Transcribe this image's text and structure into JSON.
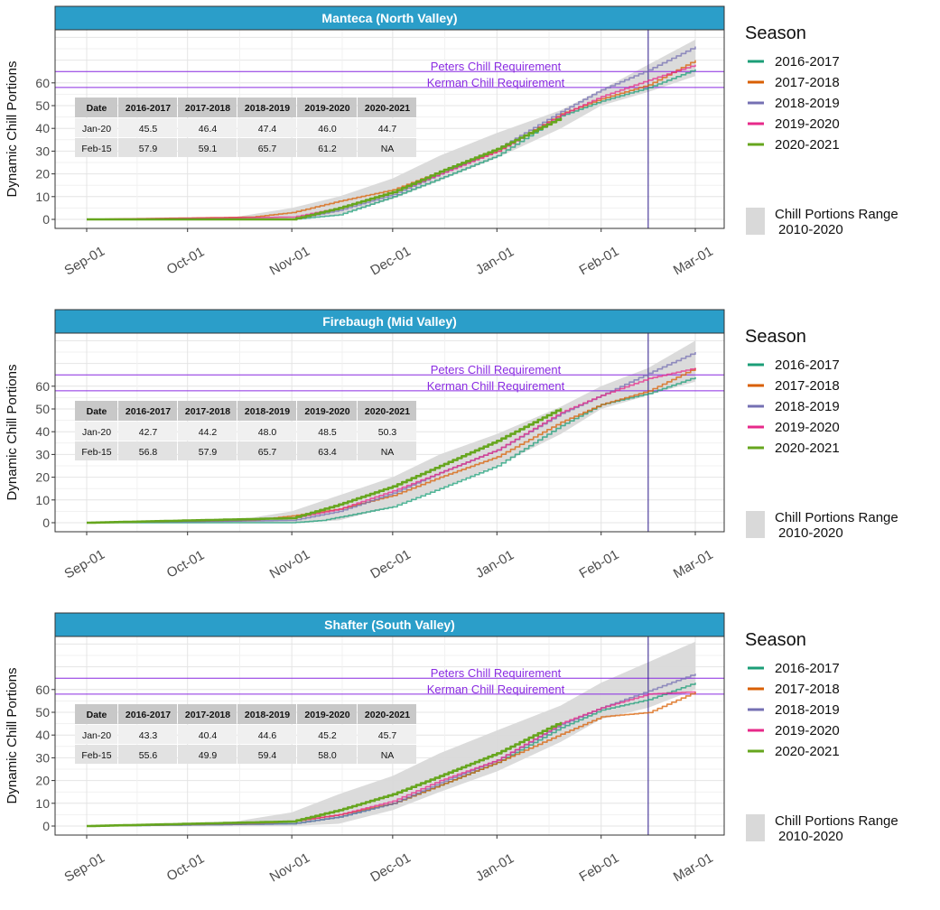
{
  "figure": {
    "ylabel": "Dynamic Chill Portions",
    "legend_title": "Season",
    "range_label_line1": "Chill Portions Range",
    "range_label_line2": "2010-2020",
    "x_ticks": [
      "Sep-01",
      "Oct-01",
      "Nov-01",
      "Dec-01",
      "Jan-01",
      "Feb-01",
      "Mar-01"
    ],
    "y_ticks": [
      0,
      10,
      20,
      30,
      40,
      50,
      60
    ],
    "threshold_labels": [
      "Peters Chill Requirement",
      "Kerman Chill Requirement"
    ],
    "table_headers": [
      "Date",
      "2016-2017",
      "2017-2018",
      "2018-2019",
      "2019-2020",
      "2020-2021"
    ],
    "colors": {
      "header_bg": "#2b9ec9",
      "threshold": "#8a2be2",
      "vline": "#2e1a8c",
      "ribbon": "#d9d9d9"
    }
  },
  "chart_data": [
    {
      "type": "line",
      "title": "Manteca (North Valley)",
      "ylabel": "Dynamic Chill Portions",
      "x_range": [
        "Sep-01",
        "Mar-01"
      ],
      "ylim": [
        -4,
        82
      ],
      "thresholds": [
        {
          "label": "Peters Chill Requirement",
          "value": 65
        },
        {
          "label": "Kerman Chill Requirement",
          "value": 58
        }
      ],
      "vline_date": "Feb-15",
      "series": [
        {
          "name": "2016-2017",
          "color": "#1b9e77",
          "points": [
            [
              "Sep-01",
              0
            ],
            [
              "Nov-01",
              0
            ],
            [
              "Nov-15",
              2
            ],
            [
              "Dec-01",
              10
            ],
            [
              "Dec-15",
              18
            ],
            [
              "Jan-01",
              28
            ],
            [
              "Jan-20",
              45.5
            ],
            [
              "Feb-01",
              52
            ],
            [
              "Feb-15",
              57.9
            ],
            [
              "Mar-01",
              66
            ]
          ]
        },
        {
          "name": "2017-2018",
          "color": "#d95f02",
          "points": [
            [
              "Sep-01",
              0
            ],
            [
              "Oct-20",
              1
            ],
            [
              "Nov-01",
              3
            ],
            [
              "Nov-15",
              8
            ],
            [
              "Dec-01",
              13
            ],
            [
              "Dec-15",
              21
            ],
            [
              "Jan-01",
              30
            ],
            [
              "Jan-20",
              46.4
            ],
            [
              "Feb-01",
              53
            ],
            [
              "Feb-15",
              59.1
            ],
            [
              "Mar-01",
              70
            ]
          ]
        },
        {
          "name": "2018-2019",
          "color": "#7570b3",
          "points": [
            [
              "Sep-01",
              0
            ],
            [
              "Nov-01",
              0
            ],
            [
              "Nov-15",
              4
            ],
            [
              "Dec-01",
              11
            ],
            [
              "Dec-15",
              20
            ],
            [
              "Jan-01",
              31
            ],
            [
              "Jan-20",
              47.4
            ],
            [
              "Feb-01",
              57
            ],
            [
              "Feb-15",
              65.7
            ],
            [
              "Mar-01",
              76
            ]
          ]
        },
        {
          "name": "2019-2020",
          "color": "#e7298a",
          "points": [
            [
              "Sep-01",
              0
            ],
            [
              "Nov-01",
              1
            ],
            [
              "Nov-15",
              5
            ],
            [
              "Dec-01",
              12
            ],
            [
              "Dec-15",
              20
            ],
            [
              "Jan-01",
              30
            ],
            [
              "Jan-20",
              46.0
            ],
            [
              "Feb-01",
              54
            ],
            [
              "Feb-15",
              61.2
            ],
            [
              "Mar-01",
              68
            ]
          ]
        },
        {
          "name": "2020-2021",
          "color": "#66a61e",
          "points": [
            [
              "Sep-01",
              0
            ],
            [
              "Nov-01",
              0
            ],
            [
              "Nov-15",
              5
            ],
            [
              "Dec-01",
              12
            ],
            [
              "Dec-15",
              21
            ],
            [
              "Jan-01",
              31
            ],
            [
              "Jan-20",
              44.7
            ]
          ]
        }
      ],
      "range_2010_2020": {
        "lower": [
          [
            "Sep-01",
            0
          ],
          [
            "Nov-01",
            0
          ],
          [
            "Nov-15",
            2
          ],
          [
            "Dec-01",
            9
          ],
          [
            "Dec-15",
            17
          ],
          [
            "Jan-01",
            27
          ],
          [
            "Jan-20",
            40
          ],
          [
            "Feb-01",
            50
          ],
          [
            "Feb-15",
            56
          ],
          [
            "Mar-01",
            63
          ]
        ],
        "upper": [
          [
            "Sep-01",
            0
          ],
          [
            "Oct-15",
            1
          ],
          [
            "Nov-01",
            5
          ],
          [
            "Nov-15",
            10
          ],
          [
            "Dec-01",
            18
          ],
          [
            "Dec-15",
            28
          ],
          [
            "Jan-01",
            38
          ],
          [
            "Jan-20",
            48
          ],
          [
            "Feb-01",
            57
          ],
          [
            "Feb-15",
            68
          ],
          [
            "Mar-01",
            79
          ]
        ]
      },
      "table": [
        {
          "date": "Jan-20",
          "values": [
            "45.5",
            "46.4",
            "47.4",
            "46.0",
            "44.7"
          ]
        },
        {
          "date": "Feb-15",
          "values": [
            "57.9",
            "59.1",
            "65.7",
            "61.2",
            "NA"
          ]
        }
      ]
    },
    {
      "type": "line",
      "title": "Firebaugh (Mid Valley)",
      "ylabel": "Dynamic Chill Portions",
      "x_range": [
        "Sep-01",
        "Mar-01"
      ],
      "ylim": [
        -4,
        82
      ],
      "thresholds": [
        {
          "label": "Peters Chill Requirement",
          "value": 65
        },
        {
          "label": "Kerman Chill Requirement",
          "value": 58
        }
      ],
      "vline_date": "Feb-15",
      "series": [
        {
          "name": "2016-2017",
          "color": "#1b9e77",
          "points": [
            [
              "Sep-01",
              0
            ],
            [
              "Nov-01",
              0
            ],
            [
              "Nov-10",
              1
            ],
            [
              "Dec-01",
              7
            ],
            [
              "Dec-15",
              15
            ],
            [
              "Jan-01",
              25
            ],
            [
              "Jan-20",
              42.7
            ],
            [
              "Feb-01",
              52
            ],
            [
              "Feb-15",
              56.8
            ],
            [
              "Mar-01",
              64
            ]
          ]
        },
        {
          "name": "2017-2018",
          "color": "#d95f02",
          "points": [
            [
              "Sep-01",
              0
            ],
            [
              "Oct-20",
              1
            ],
            [
              "Nov-01",
              3
            ],
            [
              "Nov-15",
              6
            ],
            [
              "Dec-01",
              12
            ],
            [
              "Dec-15",
              20
            ],
            [
              "Jan-01",
              29
            ],
            [
              "Jan-20",
              44.2
            ],
            [
              "Feb-01",
              52
            ],
            [
              "Feb-15",
              57.9
            ],
            [
              "Mar-01",
              68
            ]
          ]
        },
        {
          "name": "2018-2019",
          "color": "#7570b3",
          "points": [
            [
              "Sep-01",
              0
            ],
            [
              "Nov-01",
              1
            ],
            [
              "Nov-15",
              5
            ],
            [
              "Dec-01",
              13
            ],
            [
              "Dec-15",
              22
            ],
            [
              "Jan-01",
              32
            ],
            [
              "Jan-20",
              48.0
            ],
            [
              "Feb-01",
              56
            ],
            [
              "Feb-15",
              65.7
            ],
            [
              "Mar-01",
              75
            ]
          ]
        },
        {
          "name": "2019-2020",
          "color": "#e7298a",
          "points": [
            [
              "Sep-01",
              0
            ],
            [
              "Nov-01",
              2
            ],
            [
              "Nov-15",
              6
            ],
            [
              "Dec-01",
              14
            ],
            [
              "Dec-15",
              22
            ],
            [
              "Jan-01",
              32
            ],
            [
              "Jan-20",
              48.5
            ],
            [
              "Feb-01",
              56
            ],
            [
              "Feb-15",
              63.4
            ],
            [
              "Mar-01",
              68
            ]
          ]
        },
        {
          "name": "2020-2021",
          "color": "#66a61e",
          "points": [
            [
              "Sep-01",
              0
            ],
            [
              "Nov-01",
              2
            ],
            [
              "Nov-15",
              8
            ],
            [
              "Dec-01",
              16
            ],
            [
              "Dec-15",
              25
            ],
            [
              "Jan-01",
              36
            ],
            [
              "Jan-20",
              50.3
            ]
          ]
        }
      ],
      "range_2010_2020": {
        "lower": [
          [
            "Sep-01",
            0
          ],
          [
            "Nov-01",
            0
          ],
          [
            "Nov-15",
            1
          ],
          [
            "Dec-01",
            7
          ],
          [
            "Dec-15",
            15
          ],
          [
            "Jan-01",
            25
          ],
          [
            "Jan-20",
            39
          ],
          [
            "Feb-01",
            50
          ],
          [
            "Feb-15",
            56
          ],
          [
            "Mar-01",
            62
          ]
        ],
        "upper": [
          [
            "Sep-01",
            0
          ],
          [
            "Oct-15",
            1
          ],
          [
            "Nov-01",
            5
          ],
          [
            "Nov-15",
            12
          ],
          [
            "Dec-01",
            20
          ],
          [
            "Dec-15",
            30
          ],
          [
            "Jan-01",
            39
          ],
          [
            "Jan-20",
            51
          ],
          [
            "Feb-01",
            60
          ],
          [
            "Feb-15",
            68
          ],
          [
            "Mar-01",
            80
          ]
        ]
      },
      "table": [
        {
          "date": "Jan-20",
          "values": [
            "42.7",
            "44.2",
            "48.0",
            "48.5",
            "50.3"
          ]
        },
        {
          "date": "Feb-15",
          "values": [
            "56.8",
            "57.9",
            "65.7",
            "63.4",
            "NA"
          ]
        }
      ]
    },
    {
      "type": "line",
      "title": "Shafter (South Valley)",
      "ylabel": "Dynamic Chill Portions",
      "x_range": [
        "Sep-01",
        "Mar-01"
      ],
      "ylim": [
        -4,
        82
      ],
      "thresholds": [
        {
          "label": "Peters Chill Requirement",
          "value": 65
        },
        {
          "label": "Kerman Chill Requirement",
          "value": 58
        }
      ],
      "vline_date": "Feb-15",
      "series": [
        {
          "name": "2016-2017",
          "color": "#1b9e77",
          "points": [
            [
              "Sep-01",
              0
            ],
            [
              "Nov-01",
              1
            ],
            [
              "Nov-15",
              4
            ],
            [
              "Dec-01",
              10
            ],
            [
              "Dec-15",
              18
            ],
            [
              "Jan-01",
              28
            ],
            [
              "Jan-20",
              43.3
            ],
            [
              "Feb-01",
              51
            ],
            [
              "Feb-15",
              55.6
            ],
            [
              "Mar-01",
              63
            ]
          ]
        },
        {
          "name": "2017-2018",
          "color": "#d95f02",
          "points": [
            [
              "Sep-01",
              0
            ],
            [
              "Oct-20",
              1
            ],
            [
              "Nov-01",
              2
            ],
            [
              "Nov-15",
              5
            ],
            [
              "Dec-01",
              10
            ],
            [
              "Dec-15",
              18
            ],
            [
              "Jan-01",
              28
            ],
            [
              "Jan-20",
              40.4
            ],
            [
              "Feb-01",
              48
            ],
            [
              "Feb-15",
              49.9
            ],
            [
              "Mar-01",
              59
            ]
          ]
        },
        {
          "name": "2018-2019",
          "color": "#7570b3",
          "points": [
            [
              "Sep-01",
              0
            ],
            [
              "Nov-01",
              1
            ],
            [
              "Nov-15",
              4
            ],
            [
              "Dec-01",
              10
            ],
            [
              "Dec-15",
              19
            ],
            [
              "Jan-01",
              29
            ],
            [
              "Jan-20",
              44.6
            ],
            [
              "Feb-01",
              52
            ],
            [
              "Feb-15",
              59.4
            ],
            [
              "Mar-01",
              67
            ]
          ]
        },
        {
          "name": "2019-2020",
          "color": "#e7298a",
          "points": [
            [
              "Sep-01",
              0
            ],
            [
              "Nov-01",
              2
            ],
            [
              "Nov-15",
              5
            ],
            [
              "Dec-01",
              11
            ],
            [
              "Dec-15",
              20
            ],
            [
              "Jan-01",
              29
            ],
            [
              "Jan-20",
              45.2
            ],
            [
              "Feb-01",
              52
            ],
            [
              "Feb-15",
              58.0
            ],
            [
              "Mar-01",
              59
            ]
          ]
        },
        {
          "name": "2020-2021",
          "color": "#66a61e",
          "points": [
            [
              "Sep-01",
              0
            ],
            [
              "Nov-01",
              2
            ],
            [
              "Nov-15",
              7
            ],
            [
              "Dec-01",
              14
            ],
            [
              "Dec-15",
              22
            ],
            [
              "Jan-01",
              32
            ],
            [
              "Jan-20",
              45.7
            ]
          ]
        }
      ],
      "range_2010_2020": {
        "lower": [
          [
            "Sep-01",
            0
          ],
          [
            "Nov-01",
            0
          ],
          [
            "Nov-15",
            1
          ],
          [
            "Dec-01",
            7
          ],
          [
            "Dec-15",
            15
          ],
          [
            "Jan-01",
            24
          ],
          [
            "Jan-20",
            37
          ],
          [
            "Feb-01",
            47
          ],
          [
            "Feb-15",
            52
          ],
          [
            "Mar-01",
            60
          ]
        ],
        "upper": [
          [
            "Sep-01",
            0
          ],
          [
            "Oct-15",
            2
          ],
          [
            "Nov-01",
            6
          ],
          [
            "Nov-15",
            14
          ],
          [
            "Dec-01",
            22
          ],
          [
            "Dec-15",
            32
          ],
          [
            "Jan-01",
            42
          ],
          [
            "Jan-20",
            53
          ],
          [
            "Feb-01",
            63
          ],
          [
            "Feb-15",
            72
          ],
          [
            "Mar-01",
            81
          ]
        ]
      },
      "table": [
        {
          "date": "Jan-20",
          "values": [
            "43.3",
            "40.4",
            "44.6",
            "45.2",
            "45.7"
          ]
        },
        {
          "date": "Feb-15",
          "values": [
            "55.6",
            "49.9",
            "59.4",
            "58.0",
            "NA"
          ]
        }
      ]
    }
  ]
}
